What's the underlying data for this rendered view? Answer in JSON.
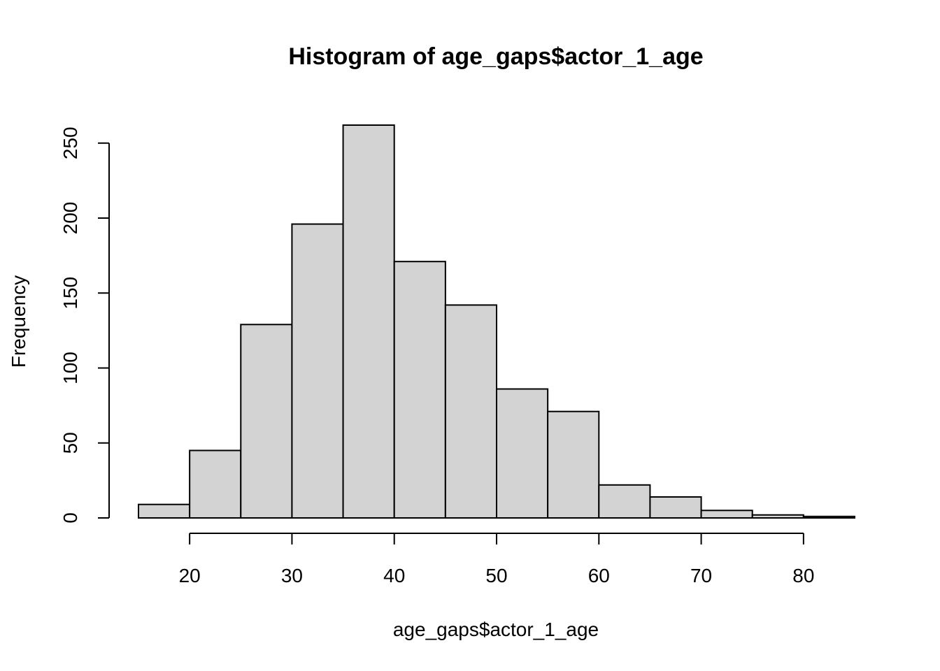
{
  "chart_data": {
    "type": "bar",
    "title": "Histogram of age_gaps$actor_1_age",
    "xlabel": "age_gaps$actor_1_age",
    "ylabel": "Frequency",
    "bins": [
      {
        "from": 15,
        "to": 20,
        "count": 9
      },
      {
        "from": 20,
        "to": 25,
        "count": 45
      },
      {
        "from": 25,
        "to": 30,
        "count": 129
      },
      {
        "from": 30,
        "to": 35,
        "count": 196
      },
      {
        "from": 35,
        "to": 40,
        "count": 262
      },
      {
        "from": 40,
        "to": 45,
        "count": 171
      },
      {
        "from": 45,
        "to": 50,
        "count": 142
      },
      {
        "from": 50,
        "to": 55,
        "count": 86
      },
      {
        "from": 55,
        "to": 60,
        "count": 71
      },
      {
        "from": 60,
        "to": 65,
        "count": 22
      },
      {
        "from": 65,
        "to": 70,
        "count": 14
      },
      {
        "from": 70,
        "to": 75,
        "count": 5
      },
      {
        "from": 75,
        "to": 80,
        "count": 2
      },
      {
        "from": 80,
        "to": 85,
        "count": 1
      }
    ],
    "xlim": [
      15,
      85
    ],
    "ylim": [
      0,
      262
    ],
    "x_ticks": [
      20,
      30,
      40,
      50,
      60,
      70,
      80
    ],
    "y_ticks": [
      0,
      50,
      100,
      150,
      200,
      250
    ],
    "fill_color": "#d3d3d3",
    "grid": false
  }
}
